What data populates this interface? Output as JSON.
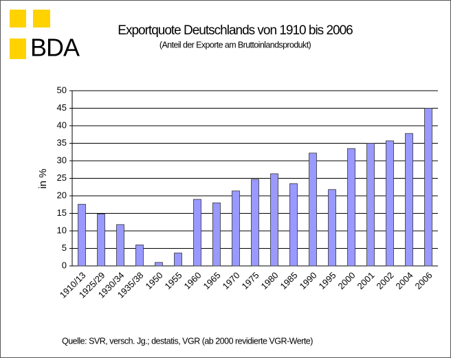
{
  "logo": "BDA",
  "chart_data": {
    "type": "bar",
    "title": "Exportquote Deutschlands von 1910 bis 2006",
    "subtitle": "(Anteil der Exporte am Bruttoinlandsprodukt)",
    "y_label": "in %",
    "source": "Quelle: SVR, versch. Jg.; destatis, VGR (ab 2000 revidierte VGR-Werte)",
    "categories": [
      "1910/13",
      "1925/29",
      "1930/34",
      "1935/38",
      "1950",
      "1955",
      "1960",
      "1965",
      "1970",
      "1975",
      "1980",
      "1985",
      "1990",
      "1995",
      "2000",
      "2001",
      "2002",
      "2004",
      "2006"
    ],
    "values": [
      17.6,
      14.8,
      11.8,
      6,
      1,
      3.7,
      19,
      18,
      21.4,
      24.7,
      26.3,
      23.5,
      32.2,
      21.8,
      33.5,
      35,
      35.7,
      37.8,
      45
    ],
    "color": "#9999ff",
    "ylim": [
      0,
      50
    ],
    "yticks": [
      0,
      5,
      10,
      15,
      20,
      25,
      30,
      35,
      40,
      45,
      50
    ],
    "grid": true
  }
}
